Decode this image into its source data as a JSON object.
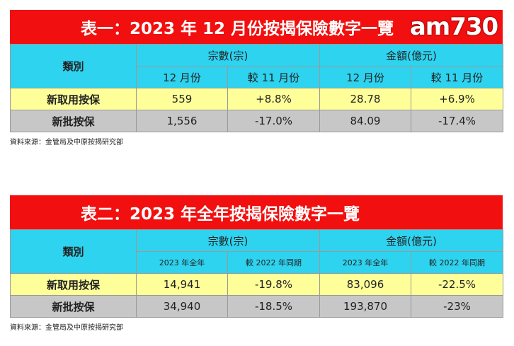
{
  "table1": {
    "title": "表一：2023 年 12 月份按揭保險數字一覽",
    "header": {
      "category": "類別",
      "group_cases": "宗數(宗)",
      "group_amount": "金額(億元)",
      "sub": [
        "12 月份",
        "較 11 月份",
        "12 月份",
        "較 11 月份"
      ]
    },
    "rows": [
      {
        "label": "新取用按保",
        "values": [
          "559",
          "+8.8%",
          "28.78",
          "+6.9%"
        ]
      },
      {
        "label": "新批按保",
        "values": [
          "1,556",
          "-17.0%",
          "84.09",
          "-17.4%"
        ]
      }
    ],
    "source": "資料來源：金管局及中原按揭研究部"
  },
  "table2": {
    "title": "表二：2023 年全年按揭保險數字一覽",
    "header": {
      "category": "類別",
      "group_cases": "宗數(宗)",
      "group_amount": "金額(億元)",
      "sub": [
        "2023 年全年",
        "較 2022 年同期",
        "2023 年全年",
        "較 2022 年同期"
      ]
    },
    "rows": [
      {
        "label": "新取用按保",
        "values": [
          "14,941",
          "-19.8%",
          "83,096",
          "-22.5%"
        ]
      },
      {
        "label": "新批按保",
        "values": [
          "34,940",
          "-18.5%",
          "193,870",
          "-23%"
        ]
      }
    ],
    "source": "資料來源：金管局及中原按揭研究部"
  },
  "watermark": {
    "text": "am730"
  },
  "colors": {
    "title_bg": "#f20f0f",
    "header_bg": "#2ed3ef",
    "row1_bg": "#ffff9a",
    "row2_bg": "#c7c7c7"
  }
}
